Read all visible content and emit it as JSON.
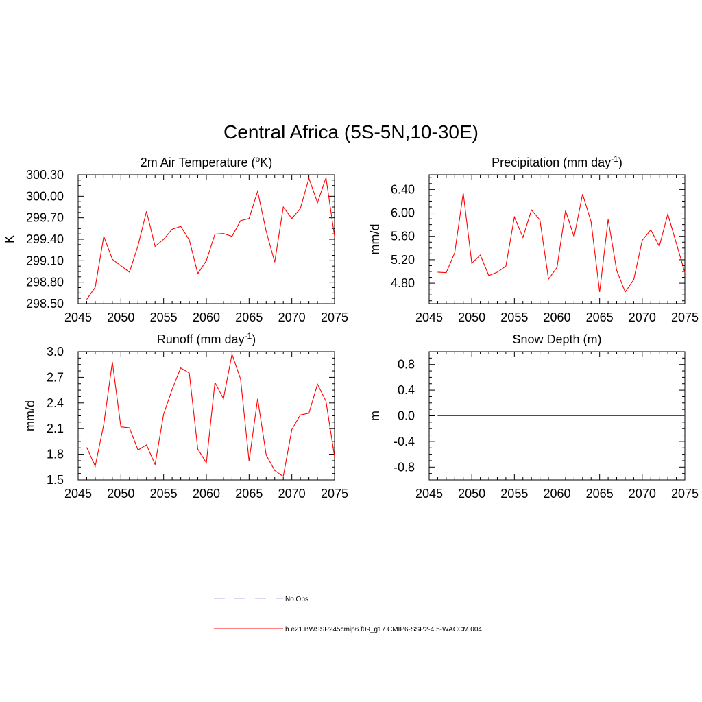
{
  "title": "Central Africa (5S-5N,10-30E)",
  "colors": {
    "model": "#ff0000",
    "obs": "#b0b0e8"
  },
  "legend": [
    {
      "label": "No Obs",
      "style": "dashed",
      "color": "#b0b0e8"
    },
    {
      "label": "b.e21.BWSSP245cmip6.f09_g17.CMIP6-SSP2-4.5-WACCM.004",
      "style": "solid",
      "color": "#ff0000"
    }
  ],
  "chart_data": [
    {
      "type": "line",
      "title": "2m Air Temperature (",
      "title_sup": "o",
      "title_after": "K)",
      "ylabel": "K",
      "xlim": [
        2045,
        2075
      ],
      "ylim": [
        298.5,
        300.3
      ],
      "x_ticks": [
        "2045",
        "2050",
        "2055",
        "2060",
        "2065",
        "2070",
        "2075"
      ],
      "y_ticks": [
        "298.50",
        "298.80",
        "299.10",
        "299.40",
        "299.70",
        "300.00",
        "300.30"
      ],
      "grid": false,
      "series": [
        {
          "x": [
            2046,
            2047,
            2048,
            2049,
            2050,
            2051,
            2052,
            2053,
            2054,
            2055,
            2056,
            2057,
            2058,
            2059,
            2060,
            2061,
            2062,
            2063,
            2064,
            2065,
            2066,
            2067,
            2068,
            2069,
            2070,
            2071,
            2072,
            2073,
            2074,
            2075
          ],
          "values": [
            298.56,
            298.73,
            299.44,
            299.12,
            299.03,
            298.94,
            299.31,
            299.79,
            299.3,
            299.4,
            299.54,
            299.58,
            299.39,
            298.92,
            299.1,
            299.47,
            299.48,
            299.44,
            299.66,
            299.69,
            300.07,
            299.51,
            299.08,
            299.85,
            299.69,
            299.83,
            300.25,
            299.91,
            300.26,
            299.44
          ]
        }
      ]
    },
    {
      "type": "line",
      "title": "Precipitation (mm day",
      "title_sup": "-1",
      "title_after": ")",
      "ylabel": "mm/d",
      "xlim": [
        2045,
        2075
      ],
      "ylim": [
        4.45,
        6.65
      ],
      "x_ticks": [
        "2045",
        "2050",
        "2055",
        "2060",
        "2065",
        "2070",
        "2075"
      ],
      "y_ticks": [
        "4.80",
        "5.20",
        "5.60",
        "6.00",
        "6.40"
      ],
      "grid": false,
      "series": [
        {
          "x": [
            2046,
            2047,
            2048,
            2049,
            2050,
            2051,
            2052,
            2053,
            2054,
            2055,
            2056,
            2057,
            2058,
            2059,
            2060,
            2061,
            2062,
            2063,
            2064,
            2065,
            2066,
            2067,
            2068,
            2069,
            2070,
            2071,
            2072,
            2073,
            2074,
            2075
          ],
          "values": [
            4.99,
            4.98,
            5.32,
            6.34,
            5.14,
            5.28,
            4.93,
            4.99,
            5.09,
            5.93,
            5.58,
            6.05,
            5.88,
            4.87,
            5.07,
            6.04,
            5.59,
            6.32,
            5.85,
            4.65,
            5.89,
            5.02,
            4.65,
            4.86,
            5.53,
            5.71,
            5.43,
            5.98,
            5.48,
            4.98
          ]
        }
      ]
    },
    {
      "type": "line",
      "title": "Runoff (mm day",
      "title_sup": "-1",
      "title_after": ")",
      "ylabel": "mm/d",
      "xlim": [
        2045,
        2075
      ],
      "ylim": [
        1.5,
        3.0
      ],
      "x_ticks": [
        "2045",
        "2050",
        "2055",
        "2060",
        "2065",
        "2070",
        "2075"
      ],
      "y_ticks": [
        "1.5",
        "1.8",
        "2.1",
        "2.4",
        "2.7",
        "3.0"
      ],
      "grid": false,
      "series": [
        {
          "x": [
            2046,
            2047,
            2048,
            2049,
            2050,
            2051,
            2052,
            2053,
            2054,
            2055,
            2056,
            2057,
            2058,
            2059,
            2060,
            2061,
            2062,
            2063,
            2064,
            2065,
            2066,
            2067,
            2068,
            2069,
            2070,
            2071,
            2072,
            2073,
            2074,
            2075
          ],
          "values": [
            1.88,
            1.66,
            2.15,
            2.88,
            2.12,
            2.11,
            1.85,
            1.91,
            1.68,
            2.27,
            2.56,
            2.81,
            2.75,
            1.86,
            1.7,
            2.64,
            2.45,
            2.97,
            2.68,
            1.72,
            2.45,
            1.79,
            1.61,
            1.54,
            2.09,
            2.26,
            2.28,
            2.62,
            2.42,
            1.77
          ]
        }
      ]
    },
    {
      "type": "line",
      "title": "Snow Depth (m)",
      "title_sup": "",
      "title_after": "",
      "ylabel": "m",
      "xlim": [
        2045,
        2075
      ],
      "ylim": [
        -1.0,
        1.0
      ],
      "x_ticks": [
        "2045",
        "2050",
        "2055",
        "2060",
        "2065",
        "2070",
        "2075"
      ],
      "y_ticks": [
        "-0.8",
        "-0.4",
        "0.0",
        "0.4",
        "0.8"
      ],
      "grid": false,
      "series": [
        {
          "x": [
            2046,
            2047,
            2048,
            2049,
            2050,
            2051,
            2052,
            2053,
            2054,
            2055,
            2056,
            2057,
            2058,
            2059,
            2060,
            2061,
            2062,
            2063,
            2064,
            2065,
            2066,
            2067,
            2068,
            2069,
            2070,
            2071,
            2072,
            2073,
            2074,
            2075
          ],
          "values": [
            0,
            0,
            0,
            0,
            0,
            0,
            0,
            0,
            0,
            0,
            0,
            0,
            0,
            0,
            0,
            0,
            0,
            0,
            0,
            0,
            0,
            0,
            0,
            0,
            0,
            0,
            0,
            0,
            0,
            0
          ]
        }
      ]
    }
  ]
}
